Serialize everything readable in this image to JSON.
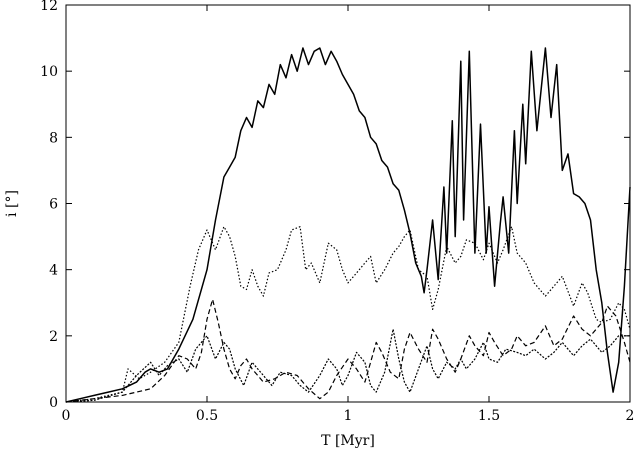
{
  "chart_data": {
    "type": "line",
    "title": "",
    "xlabel": "T [Myr]",
    "ylabel": "i [°]",
    "xlim": [
      0,
      2
    ],
    "ylim": [
      0,
      12
    ],
    "grid": false,
    "legend": "none",
    "x_ticks": [
      0,
      0.5,
      1,
      1.5,
      2
    ],
    "x_tick_labels": [
      "0",
      "0.5",
      "1",
      "1.5",
      "2"
    ],
    "y_ticks": [
      0,
      2,
      4,
      6,
      8,
      10,
      12
    ],
    "y_tick_labels": [
      "0",
      "2",
      "4",
      "6",
      "8",
      "10",
      "12"
    ],
    "series": [
      {
        "style": "solid",
        "color": "#000000",
        "points": [
          [
            0,
            0
          ],
          [
            0.05,
            0.1
          ],
          [
            0.1,
            0.2
          ],
          [
            0.15,
            0.3
          ],
          [
            0.2,
            0.4
          ],
          [
            0.25,
            0.6
          ],
          [
            0.28,
            0.9
          ],
          [
            0.3,
            1.0
          ],
          [
            0.33,
            0.9
          ],
          [
            0.36,
            1.0
          ],
          [
            0.4,
            1.6
          ],
          [
            0.45,
            2.5
          ],
          [
            0.5,
            4.0
          ],
          [
            0.53,
            5.5
          ],
          [
            0.56,
            6.8
          ],
          [
            0.58,
            7.1
          ],
          [
            0.6,
            7.4
          ],
          [
            0.62,
            8.2
          ],
          [
            0.64,
            8.6
          ],
          [
            0.66,
            8.3
          ],
          [
            0.68,
            9.1
          ],
          [
            0.7,
            8.9
          ],
          [
            0.72,
            9.6
          ],
          [
            0.74,
            9.3
          ],
          [
            0.76,
            10.2
          ],
          [
            0.78,
            9.8
          ],
          [
            0.8,
            10.5
          ],
          [
            0.82,
            10.0
          ],
          [
            0.84,
            10.7
          ],
          [
            0.86,
            10.2
          ],
          [
            0.88,
            10.6
          ],
          [
            0.9,
            10.7
          ],
          [
            0.92,
            10.2
          ],
          [
            0.94,
            10.6
          ],
          [
            0.96,
            10.3
          ],
          [
            0.98,
            9.9
          ],
          [
            1.0,
            9.6
          ],
          [
            1.02,
            9.3
          ],
          [
            1.04,
            8.8
          ],
          [
            1.06,
            8.6
          ],
          [
            1.08,
            8.0
          ],
          [
            1.1,
            7.8
          ],
          [
            1.12,
            7.3
          ],
          [
            1.14,
            7.1
          ],
          [
            1.16,
            6.6
          ],
          [
            1.18,
            6.4
          ],
          [
            1.2,
            5.8
          ],
          [
            1.22,
            5.1
          ],
          [
            1.24,
            4.2
          ],
          [
            1.26,
            3.8
          ],
          [
            1.27,
            3.3
          ],
          [
            1.28,
            4.0
          ],
          [
            1.3,
            5.5
          ],
          [
            1.32,
            3.7
          ],
          [
            1.34,
            6.5
          ],
          [
            1.35,
            4.5
          ],
          [
            1.37,
            8.5
          ],
          [
            1.38,
            5.0
          ],
          [
            1.4,
            10.3
          ],
          [
            1.41,
            5.5
          ],
          [
            1.43,
            10.6
          ],
          [
            1.45,
            4.5
          ],
          [
            1.47,
            8.4
          ],
          [
            1.49,
            4.5
          ],
          [
            1.5,
            5.9
          ],
          [
            1.52,
            3.5
          ],
          [
            1.54,
            5.4
          ],
          [
            1.55,
            6.2
          ],
          [
            1.57,
            4.5
          ],
          [
            1.59,
            8.2
          ],
          [
            1.6,
            6.0
          ],
          [
            1.62,
            9.0
          ],
          [
            1.63,
            7.2
          ],
          [
            1.65,
            10.6
          ],
          [
            1.67,
            8.2
          ],
          [
            1.7,
            10.7
          ],
          [
            1.72,
            8.6
          ],
          [
            1.74,
            10.2
          ],
          [
            1.76,
            7.0
          ],
          [
            1.78,
            7.5
          ],
          [
            1.8,
            6.3
          ],
          [
            1.82,
            6.2
          ],
          [
            1.84,
            6.0
          ],
          [
            1.86,
            5.5
          ],
          [
            1.88,
            4.0
          ],
          [
            1.9,
            3.0
          ],
          [
            1.92,
            1.5
          ],
          [
            1.94,
            0.3
          ],
          [
            1.96,
            1.2
          ],
          [
            1.98,
            3.5
          ],
          [
            2.0,
            6.5
          ]
        ]
      },
      {
        "style": "dotted",
        "color": "#000000",
        "points": [
          [
            0,
            0
          ],
          [
            0.1,
            0.1
          ],
          [
            0.2,
            0.3
          ],
          [
            0.22,
            1.0
          ],
          [
            0.26,
            0.7
          ],
          [
            0.3,
            0.9
          ],
          [
            0.35,
            1.2
          ],
          [
            0.4,
            1.8
          ],
          [
            0.44,
            3.5
          ],
          [
            0.47,
            4.6
          ],
          [
            0.5,
            5.2
          ],
          [
            0.53,
            4.6
          ],
          [
            0.56,
            5.3
          ],
          [
            0.58,
            5.0
          ],
          [
            0.6,
            4.4
          ],
          [
            0.62,
            3.5
          ],
          [
            0.64,
            3.4
          ],
          [
            0.66,
            4.0
          ],
          [
            0.68,
            3.5
          ],
          [
            0.7,
            3.2
          ],
          [
            0.72,
            3.9
          ],
          [
            0.75,
            4.0
          ],
          [
            0.78,
            4.6
          ],
          [
            0.8,
            5.2
          ],
          [
            0.83,
            5.3
          ],
          [
            0.85,
            4.0
          ],
          [
            0.87,
            4.2
          ],
          [
            0.9,
            3.6
          ],
          [
            0.93,
            4.8
          ],
          [
            0.96,
            4.6
          ],
          [
            0.98,
            4.0
          ],
          [
            1.0,
            3.6
          ],
          [
            1.03,
            3.9
          ],
          [
            1.06,
            4.2
          ],
          [
            1.08,
            4.4
          ],
          [
            1.1,
            3.6
          ],
          [
            1.13,
            4.0
          ],
          [
            1.16,
            4.5
          ],
          [
            1.18,
            4.7
          ],
          [
            1.2,
            5.0
          ],
          [
            1.22,
            5.2
          ],
          [
            1.25,
            4.0
          ],
          [
            1.28,
            3.8
          ],
          [
            1.3,
            2.8
          ],
          [
            1.32,
            3.4
          ],
          [
            1.35,
            4.7
          ],
          [
            1.38,
            4.2
          ],
          [
            1.4,
            4.4
          ],
          [
            1.42,
            4.9
          ],
          [
            1.45,
            4.8
          ],
          [
            1.48,
            4.3
          ],
          [
            1.5,
            4.8
          ],
          [
            1.53,
            4.2
          ],
          [
            1.55,
            4.6
          ],
          [
            1.58,
            5.3
          ],
          [
            1.6,
            4.5
          ],
          [
            1.63,
            4.2
          ],
          [
            1.66,
            3.6
          ],
          [
            1.7,
            3.2
          ],
          [
            1.73,
            3.5
          ],
          [
            1.76,
            3.8
          ],
          [
            1.8,
            2.9
          ],
          [
            1.83,
            3.6
          ],
          [
            1.85,
            3.3
          ],
          [
            1.88,
            2.5
          ],
          [
            1.9,
            2.4
          ],
          [
            1.93,
            2.5
          ],
          [
            1.96,
            3.0
          ],
          [
            1.98,
            2.8
          ],
          [
            2.0,
            2.2
          ]
        ]
      },
      {
        "style": "dashed",
        "color": "#000000",
        "points": [
          [
            0,
            0
          ],
          [
            0.1,
            0.1
          ],
          [
            0.2,
            0.2
          ],
          [
            0.3,
            0.4
          ],
          [
            0.35,
            0.8
          ],
          [
            0.4,
            1.4
          ],
          [
            0.43,
            1.3
          ],
          [
            0.46,
            1.0
          ],
          [
            0.48,
            1.5
          ],
          [
            0.5,
            2.5
          ],
          [
            0.52,
            3.1
          ],
          [
            0.54,
            2.4
          ],
          [
            0.56,
            1.6
          ],
          [
            0.58,
            1.0
          ],
          [
            0.6,
            0.7
          ],
          [
            0.62,
            1.1
          ],
          [
            0.64,
            1.3
          ],
          [
            0.66,
            1.0
          ],
          [
            0.7,
            0.6
          ],
          [
            0.74,
            0.7
          ],
          [
            0.78,
            0.9
          ],
          [
            0.82,
            0.8
          ],
          [
            0.86,
            0.4
          ],
          [
            0.9,
            0.1
          ],
          [
            0.93,
            0.3
          ],
          [
            0.96,
            0.8
          ],
          [
            1.0,
            1.3
          ],
          [
            1.03,
            1.0
          ],
          [
            1.06,
            0.6
          ],
          [
            1.08,
            1.2
          ],
          [
            1.1,
            1.8
          ],
          [
            1.12,
            1.5
          ],
          [
            1.15,
            0.9
          ],
          [
            1.18,
            0.7
          ],
          [
            1.2,
            1.6
          ],
          [
            1.22,
            2.1
          ],
          [
            1.25,
            1.6
          ],
          [
            1.28,
            1.2
          ],
          [
            1.3,
            2.2
          ],
          [
            1.32,
            1.9
          ],
          [
            1.35,
            1.3
          ],
          [
            1.38,
            0.9
          ],
          [
            1.4,
            1.3
          ],
          [
            1.43,
            2.0
          ],
          [
            1.45,
            1.7
          ],
          [
            1.48,
            1.4
          ],
          [
            1.5,
            2.1
          ],
          [
            1.52,
            1.8
          ],
          [
            1.55,
            1.4
          ],
          [
            1.58,
            1.6
          ],
          [
            1.6,
            2.0
          ],
          [
            1.63,
            1.7
          ],
          [
            1.66,
            1.8
          ],
          [
            1.7,
            2.3
          ],
          [
            1.73,
            1.7
          ],
          [
            1.76,
            1.9
          ],
          [
            1.8,
            2.6
          ],
          [
            1.83,
            2.2
          ],
          [
            1.86,
            2.0
          ],
          [
            1.9,
            2.4
          ],
          [
            1.92,
            2.9
          ],
          [
            1.95,
            2.6
          ],
          [
            1.98,
            1.8
          ],
          [
            2.0,
            1.2
          ]
        ]
      },
      {
        "style": "densely-dotted",
        "color": "#000000",
        "points": [
          [
            0,
            0
          ],
          [
            0.1,
            0.05
          ],
          [
            0.2,
            0.3
          ],
          [
            0.25,
            0.8
          ],
          [
            0.3,
            1.2
          ],
          [
            0.33,
            0.8
          ],
          [
            0.36,
            1.1
          ],
          [
            0.4,
            1.3
          ],
          [
            0.43,
            0.9
          ],
          [
            0.46,
            1.6
          ],
          [
            0.5,
            2.0
          ],
          [
            0.53,
            1.3
          ],
          [
            0.56,
            1.8
          ],
          [
            0.58,
            1.6
          ],
          [
            0.6,
            1.0
          ],
          [
            0.63,
            0.5
          ],
          [
            0.66,
            1.2
          ],
          [
            0.7,
            0.8
          ],
          [
            0.73,
            0.5
          ],
          [
            0.76,
            0.9
          ],
          [
            0.8,
            0.8
          ],
          [
            0.83,
            0.5
          ],
          [
            0.86,
            0.3
          ],
          [
            0.9,
            0.8
          ],
          [
            0.93,
            1.3
          ],
          [
            0.96,
            1.0
          ],
          [
            0.98,
            0.5
          ],
          [
            1.0,
            0.8
          ],
          [
            1.03,
            1.5
          ],
          [
            1.06,
            1.2
          ],
          [
            1.08,
            0.5
          ],
          [
            1.1,
            0.3
          ],
          [
            1.13,
            0.9
          ],
          [
            1.16,
            2.2
          ],
          [
            1.18,
            1.3
          ],
          [
            1.2,
            0.6
          ],
          [
            1.22,
            0.3
          ],
          [
            1.25,
            1.0
          ],
          [
            1.28,
            1.7
          ],
          [
            1.3,
            1.0
          ],
          [
            1.32,
            0.7
          ],
          [
            1.35,
            1.2
          ],
          [
            1.38,
            1.0
          ],
          [
            1.4,
            1.3
          ],
          [
            1.42,
            1.0
          ],
          [
            1.45,
            1.3
          ],
          [
            1.48,
            1.8
          ],
          [
            1.5,
            1.3
          ],
          [
            1.53,
            1.2
          ],
          [
            1.56,
            1.6
          ],
          [
            1.6,
            1.5
          ],
          [
            1.63,
            1.4
          ],
          [
            1.66,
            1.6
          ],
          [
            1.7,
            1.3
          ],
          [
            1.73,
            1.5
          ],
          [
            1.76,
            1.8
          ],
          [
            1.8,
            1.4
          ],
          [
            1.83,
            1.7
          ],
          [
            1.86,
            1.9
          ],
          [
            1.9,
            1.5
          ],
          [
            1.93,
            1.7
          ],
          [
            1.96,
            2.0
          ],
          [
            2.0,
            2.0
          ]
        ]
      }
    ]
  }
}
